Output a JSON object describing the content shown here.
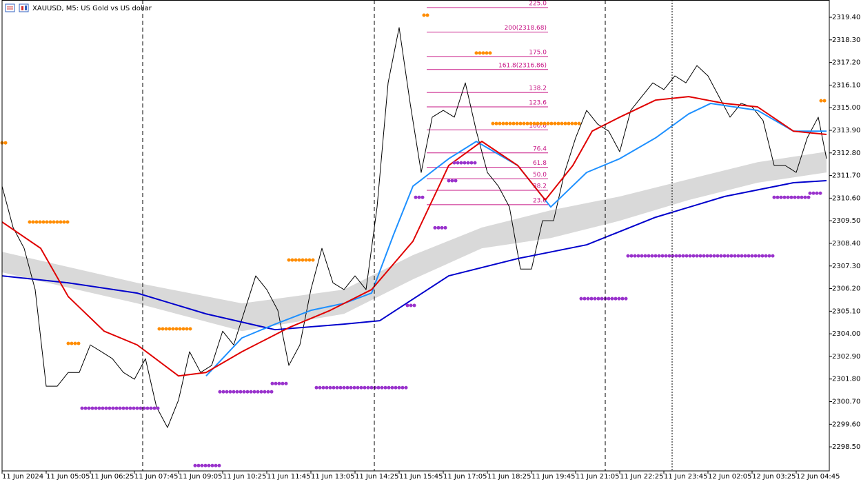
{
  "chart_data": {
    "type": "line",
    "title": "XAUUSD, M5:  US Gold vs US dollar",
    "xlim": [
      0,
      300
    ],
    "ylim": [
      2297.33,
      2320.24
    ],
    "xticks": [
      {
        "value": 0,
        "label": "11 Jun 2024"
      },
      {
        "value": 16,
        "label": "11 Jun 05:05"
      },
      {
        "value": 32,
        "label": "11 Jun 06:25"
      },
      {
        "value": 48,
        "label": "11 Jun 07:45"
      },
      {
        "value": 64,
        "label": "11 Jun 09:05"
      },
      {
        "value": 80,
        "label": "11 Jun 10:25"
      },
      {
        "value": 96,
        "label": "11 Jun 11:45"
      },
      {
        "value": 112,
        "label": "11 Jun 13:05"
      },
      {
        "value": 128,
        "label": "11 Jun 14:25"
      },
      {
        "value": 144,
        "label": "11 Jun 15:45"
      },
      {
        "value": 160,
        "label": "11 Jun 17:05"
      },
      {
        "value": 176,
        "label": "11 Jun 18:25"
      },
      {
        "value": 192,
        "label": "11 Jun 19:45"
      },
      {
        "value": 208,
        "label": "11 Jun 21:05"
      },
      {
        "value": 224,
        "label": "11 Jun 22:25"
      },
      {
        "value": 240,
        "label": "11 Jun 23:45"
      },
      {
        "value": 256,
        "label": "12 Jun 02:05"
      },
      {
        "value": 272,
        "label": "12 Jun 03:25"
      },
      {
        "value": 288,
        "label": "12 Jun 04:45"
      }
    ],
    "yticks": [
      {
        "value": 2319.4,
        "label": "2319.40"
      },
      {
        "value": 2318.3,
        "label": "2318.30"
      },
      {
        "value": 2317.2,
        "label": "2317.20"
      },
      {
        "value": 2316.1,
        "label": "2316.10"
      },
      {
        "value": 2315.0,
        "label": "2315.00"
      },
      {
        "value": 2313.9,
        "label": "2313.90"
      },
      {
        "value": 2312.8,
        "label": "2312.80"
      },
      {
        "value": 2311.7,
        "label": "2311.70"
      },
      {
        "value": 2310.6,
        "label": "2310.60"
      },
      {
        "value": 2309.5,
        "label": "2309.50"
      },
      {
        "value": 2308.4,
        "label": "2308.40"
      },
      {
        "value": 2307.3,
        "label": "2307.30"
      },
      {
        "value": 2306.2,
        "label": "2306.20"
      },
      {
        "value": 2305.1,
        "label": "2305.10"
      },
      {
        "value": 2304.0,
        "label": "2304.00"
      },
      {
        "value": 2302.9,
        "label": "2302.90"
      },
      {
        "value": 2301.8,
        "label": "2301.80"
      },
      {
        "value": 2300.7,
        "label": "2300.70"
      },
      {
        "value": 2299.6,
        "label": "2299.60"
      },
      {
        "value": 2298.5,
        "label": "2298.50"
      }
    ],
    "band": {
      "color": "#d9d9d9",
      "x": [
        0,
        49,
        87,
        124,
        149,
        174,
        199,
        224,
        249,
        274,
        299
      ],
      "upper": [
        2307.99,
        2306.48,
        2305.48,
        2306.15,
        2307.83,
        2309.17,
        2310.01,
        2310.68,
        2311.52,
        2312.35,
        2312.86
      ],
      "lower": [
        2306.99,
        2305.48,
        2304.13,
        2304.97,
        2306.65,
        2308.16,
        2308.66,
        2309.5,
        2310.51,
        2311.35,
        2311.85
      ]
    },
    "series": [
      {
        "color": "#000000",
        "width": 1,
        "x": [
          0,
          4,
          8,
          12,
          16,
          20,
          24,
          28,
          32,
          36,
          40,
          44,
          48,
          52,
          56,
          60,
          64,
          68,
          72,
          76,
          80,
          84,
          88,
          92,
          96,
          100,
          104,
          108,
          112,
          116,
          120,
          124,
          128,
          132,
          136,
          140,
          144,
          148,
          152,
          156,
          160,
          164,
          168,
          172,
          176,
          180,
          184,
          188,
          192,
          196,
          200,
          204,
          208,
          212,
          216,
          220,
          224,
          228,
          232,
          236,
          240,
          244,
          248,
          252,
          256,
          260,
          264,
          268,
          272,
          276,
          280,
          284,
          288,
          292,
          296,
          299
        ],
        "values": [
          2311.18,
          2309.17,
          2308.16,
          2306.15,
          2301.45,
          2301.45,
          2302.12,
          2302.12,
          2303.46,
          2303.13,
          2302.79,
          2302.12,
          2301.79,
          2302.79,
          2300.44,
          2299.44,
          2300.78,
          2303.13,
          2302.12,
          2302.46,
          2304.13,
          2303.46,
          2305.14,
          2306.82,
          2306.15,
          2305.14,
          2302.46,
          2303.46,
          2306.15,
          2308.16,
          2306.48,
          2306.15,
          2306.82,
          2306.15,
          2310.17,
          2316.21,
          2318.9,
          2315.21,
          2311.85,
          2314.54,
          2314.87,
          2314.54,
          2316.21,
          2313.86,
          2311.85,
          2311.18,
          2310.17,
          2307.15,
          2307.15,
          2309.5,
          2309.5,
          2311.85,
          2313.53,
          2314.87,
          2314.2,
          2313.86,
          2312.86,
          2314.87,
          2315.54,
          2316.21,
          2315.88,
          2316.55,
          2316.21,
          2317.05,
          2316.55,
          2315.54,
          2314.54,
          2315.21,
          2315.04,
          2314.37,
          2312.19,
          2312.19,
          2311.85,
          2313.53,
          2314.54,
          2312.52
        ]
      },
      {
        "color": "#0000cc",
        "width": 2,
        "x": [
          0,
          24,
          49,
          74,
          99,
          124,
          137,
          162,
          187,
          212,
          237,
          262,
          287,
          299
        ],
        "values": [
          2306.82,
          2306.48,
          2305.98,
          2304.97,
          2304.2,
          2304.47,
          2304.64,
          2306.82,
          2307.66,
          2308.33,
          2309.67,
          2310.68,
          2311.35,
          2311.45
        ]
      },
      {
        "color": "#1e90ff",
        "width": 2,
        "x": [
          74,
          87,
          99,
          112,
          124,
          134,
          142,
          149,
          162,
          172,
          187,
          199,
          212,
          224,
          237,
          249,
          257,
          274,
          287,
          299
        ],
        "values": [
          2301.95,
          2303.8,
          2304.47,
          2305.14,
          2305.48,
          2305.98,
          2308.83,
          2311.18,
          2312.52,
          2313.36,
          2312.19,
          2310.17,
          2311.85,
          2312.52,
          2313.53,
          2314.7,
          2315.21,
          2314.87,
          2313.86,
          2313.86
        ]
      },
      {
        "color": "#e00000",
        "width": 2,
        "x": [
          0,
          14,
          24,
          37,
          49,
          64,
          74,
          87,
          104,
          119,
          134,
          149,
          162,
          174,
          187,
          197,
          207,
          214,
          224,
          237,
          249,
          262,
          274,
          287,
          299
        ],
        "values": [
          2309.44,
          2308.16,
          2305.81,
          2304.13,
          2303.46,
          2301.95,
          2302.12,
          2303.13,
          2304.3,
          2305.14,
          2306.15,
          2308.5,
          2312.19,
          2313.36,
          2312.19,
          2310.51,
          2312.19,
          2313.86,
          2314.54,
          2315.37,
          2315.54,
          2315.21,
          2315.04,
          2313.86,
          2313.7
        ]
      }
    ],
    "fib_color": "#c71585",
    "fib_range": [
      154,
      198
    ],
    "fib_levels": [
      {
        "value": 2319.87,
        "label": "225.0"
      },
      {
        "value": 2318.68,
        "label": "200(2318.68)"
      },
      {
        "value": 2317.49,
        "label": "175.0"
      },
      {
        "value": 2316.86,
        "label": "161.8(2316.86)"
      },
      {
        "value": 2315.74,
        "label": "138.2"
      },
      {
        "value": 2315.04,
        "label": "123.6"
      },
      {
        "value": 2313.92,
        "label": "100.0"
      },
      {
        "value": 2312.8,
        "label": "76.4"
      },
      {
        "value": 2312.1,
        "label": "61.8"
      },
      {
        "value": 2311.54,
        "label": "50.0"
      },
      {
        "value": 2310.98,
        "label": "38.2"
      },
      {
        "value": 2310.28,
        "label": "23.6"
      }
    ],
    "levels": [
      {
        "color": "#ff8c00",
        "value": 2313.29,
        "x0": 0,
        "x1": 2
      },
      {
        "color": "#ff8c00",
        "value": 2309.44,
        "x0": 10,
        "x1": 24
      },
      {
        "color": "#ff8c00",
        "value": 2303.53,
        "x0": 24,
        "x1": 29
      },
      {
        "color": "#ff8c00",
        "value": 2304.24,
        "x0": 57,
        "x1": 69
      },
      {
        "color": "#ff8c00",
        "value": 2307.59,
        "x0": 104,
        "x1": 114
      },
      {
        "color": "#ff8c00",
        "value": 2319.5,
        "x0": 153,
        "x1": 155
      },
      {
        "color": "#ff8c00",
        "value": 2317.66,
        "x0": 172,
        "x1": 178
      },
      {
        "color": "#ff8c00",
        "value": 2314.23,
        "x0": 178,
        "x1": 210
      },
      {
        "color": "#ff8c00",
        "value": 2315.34,
        "x0": 297,
        "x1": 299
      },
      {
        "color": "#9932cc",
        "value": 2300.38,
        "x0": 29,
        "x1": 57
      },
      {
        "color": "#9932cc",
        "value": 2297.59,
        "x0": 70,
        "x1": 79
      },
      {
        "color": "#9932cc",
        "value": 2301.18,
        "x0": 79,
        "x1": 98
      },
      {
        "color": "#9932cc",
        "value": 2301.58,
        "x0": 98,
        "x1": 104
      },
      {
        "color": "#9932cc",
        "value": 2301.38,
        "x0": 114,
        "x1": 147
      },
      {
        "color": "#9932cc",
        "value": 2305.38,
        "x0": 147,
        "x1": 150
      },
      {
        "color": "#9932cc",
        "value": 2310.64,
        "x0": 150,
        "x1": 153
      },
      {
        "color": "#9932cc",
        "value": 2309.16,
        "x0": 157,
        "x1": 162
      },
      {
        "color": "#9932cc",
        "value": 2311.45,
        "x0": 162,
        "x1": 165
      },
      {
        "color": "#9932cc",
        "value": 2312.32,
        "x0": 164,
        "x1": 172
      },
      {
        "color": "#9932cc",
        "value": 2305.71,
        "x0": 210,
        "x1": 227
      },
      {
        "color": "#9932cc",
        "value": 2307.79,
        "x0": 227,
        "x1": 280
      },
      {
        "color": "#9932cc",
        "value": 2310.64,
        "x0": 280,
        "x1": 293
      },
      {
        "color": "#9932cc",
        "value": 2310.84,
        "x0": 293,
        "x1": 297
      }
    ]
  }
}
